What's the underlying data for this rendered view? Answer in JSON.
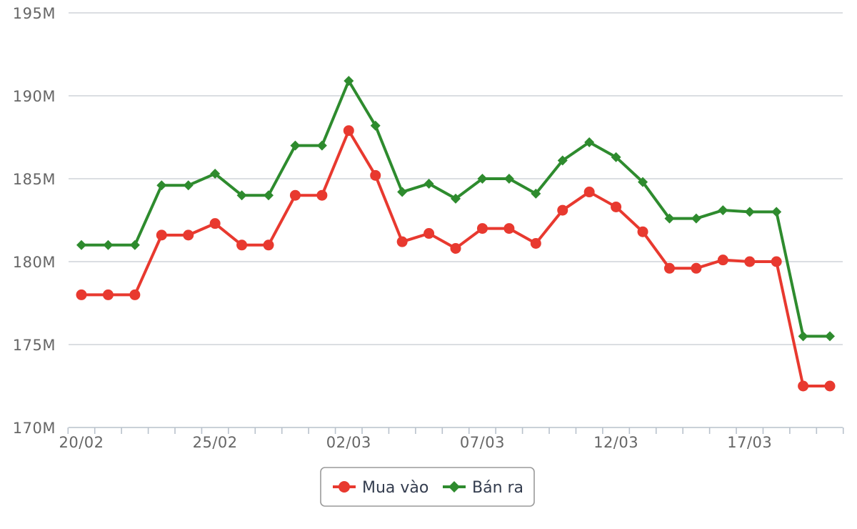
{
  "chart_data": {
    "type": "line",
    "title": "",
    "xlabel": "",
    "ylabel": "",
    "ylim": [
      170,
      195
    ],
    "y_unit_suffix": "M",
    "y_ticks": [
      "170M",
      "175M",
      "180M",
      "185M",
      "190M",
      "195M"
    ],
    "x_tick_labels": [
      "20/02",
      "25/02",
      "02/03",
      "07/03",
      "12/03",
      "17/03"
    ],
    "grid": true,
    "legend_position": "bottom-center",
    "categories": [
      "20/02",
      "21/02",
      "22/02",
      "23/02",
      "24/02",
      "25/02",
      "26/02",
      "27/02",
      "28/02",
      "01/03",
      "02/03",
      "03/03",
      "04/03",
      "05/03",
      "06/03",
      "07/03",
      "08/03",
      "09/03",
      "10/03",
      "11/03",
      "12/03",
      "13/03",
      "14/03",
      "15/03",
      "16/03",
      "17/03",
      "18/03",
      "19/03",
      "20/03"
    ],
    "series": [
      {
        "name": "Mua vào",
        "color": "#e8392f",
        "marker": "circle",
        "values": [
          178,
          178,
          178,
          181.6,
          181.6,
          182.3,
          181,
          181,
          184,
          184,
          187.9,
          185.2,
          181.2,
          181.7,
          180.8,
          182,
          182,
          181.1,
          183.1,
          184.2,
          183.3,
          181.8,
          179.6,
          179.6,
          180.1,
          180,
          180,
          172.5,
          172.5
        ]
      },
      {
        "name": "Bán ra",
        "color": "#2e8b2e",
        "marker": "diamond",
        "values": [
          181,
          181,
          181,
          184.6,
          184.6,
          185.3,
          184,
          184,
          187,
          187,
          190.9,
          188.2,
          184.2,
          184.7,
          183.8,
          185,
          185,
          184.1,
          186.1,
          187.2,
          186.3,
          184.8,
          182.6,
          182.6,
          183.1,
          183,
          183,
          175.5,
          175.5
        ]
      }
    ]
  }
}
